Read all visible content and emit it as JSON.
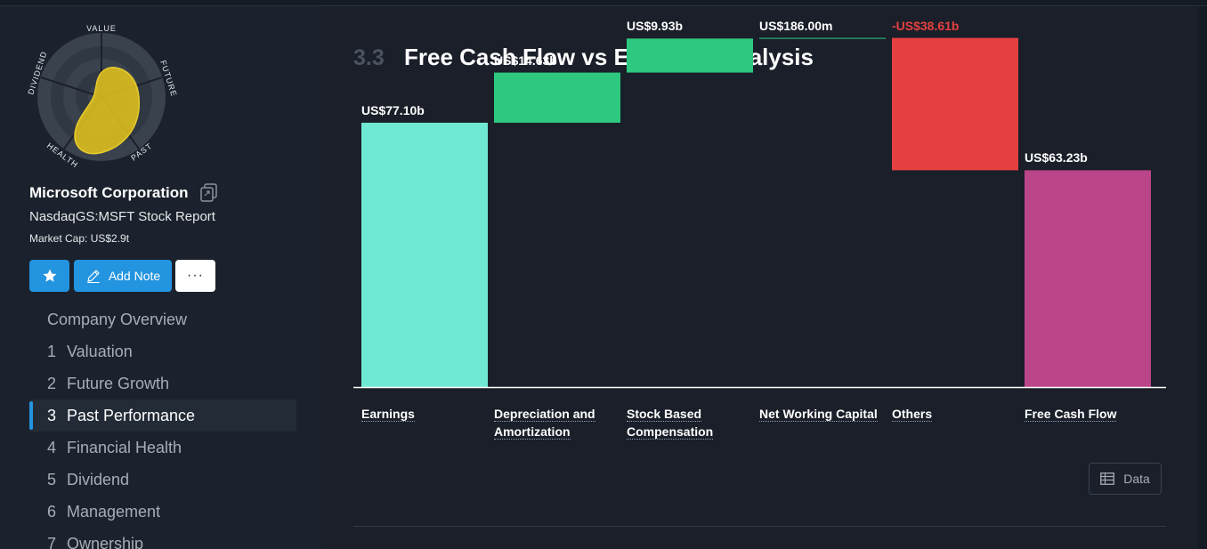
{
  "company": {
    "name": "Microsoft Corporation",
    "stock_report": "NasdaqGS:MSFT Stock Report",
    "market_cap": "Market Cap: US$2.9t"
  },
  "snowflake": {
    "axes": [
      "VALUE",
      "FUTURE",
      "PAST",
      "HEALTH",
      "DIVIDEND"
    ],
    "fill_color": "#e0c21c"
  },
  "actions": {
    "star_icon": "star-icon",
    "add_note": "Add Note",
    "more": "···"
  },
  "nav": {
    "overview": "Company Overview",
    "items": [
      {
        "num": "1",
        "label": "Valuation"
      },
      {
        "num": "2",
        "label": "Future Growth"
      },
      {
        "num": "3",
        "label": "Past Performance",
        "active": true
      },
      {
        "num": "4",
        "label": "Financial Health"
      },
      {
        "num": "5",
        "label": "Dividend"
      },
      {
        "num": "6",
        "label": "Management"
      },
      {
        "num": "7",
        "label": "Ownership"
      }
    ]
  },
  "section": {
    "number": "3.3",
    "title": "Free Cash Flow vs Earnings Analysis"
  },
  "chart_data": {
    "type": "bar",
    "subtype": "waterfall",
    "unit": "US$ billions",
    "categories": [
      "Earnings",
      "Depreciation and Amortization",
      "Stock Based Compensation",
      "Net Working Capital",
      "Others",
      "Free Cash Flow"
    ],
    "values": [
      77.1,
      14.63,
      9.93,
      0.186,
      -38.61,
      63.23
    ],
    "value_labels": [
      "US$77.10b",
      "US$14.63b",
      "US$9.93b",
      "US$186.00m",
      "-US$38.61b",
      "US$63.23b"
    ],
    "kinds": [
      "total",
      "delta",
      "delta",
      "delta",
      "delta",
      "total"
    ],
    "colors": [
      "#6fe9d4",
      "#2ec880",
      "#2ec880",
      "#2ec880",
      "#e54040",
      "#bb4589"
    ],
    "label_colors": [
      "#ffffff",
      "#ffffff",
      "#ffffff",
      "#ffffff",
      "#e54040",
      "#ffffff"
    ],
    "ylim": [
      0,
      102
    ]
  },
  "data_button": "Data"
}
